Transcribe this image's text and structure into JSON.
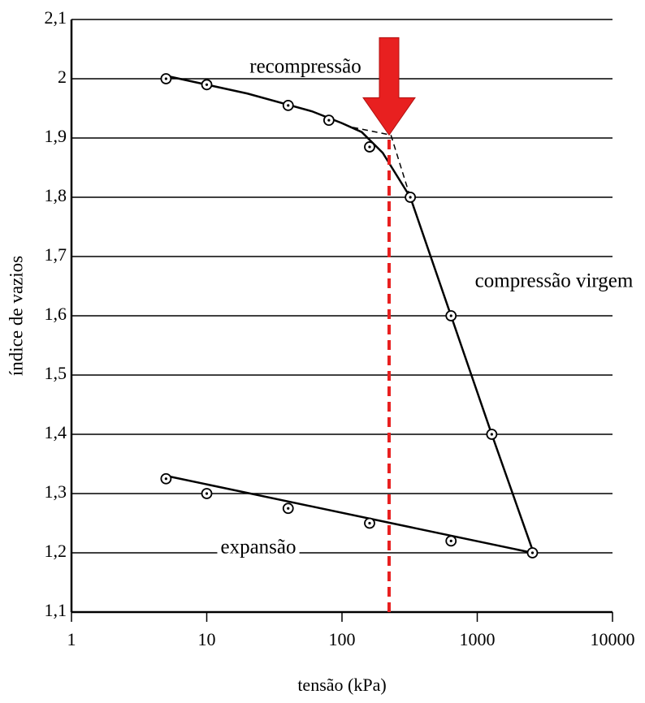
{
  "chart_data": {
    "type": "scatter",
    "xlabel": "tensão (kPa)",
    "ylabel": "índice de vazios",
    "xlog": true,
    "grid": true,
    "xlim": [
      1,
      10000
    ],
    "ylim": [
      1.1,
      2.1
    ],
    "xticks": [
      1,
      10,
      100,
      1000,
      10000
    ],
    "yticks": [
      {
        "value": 1.1,
        "label": "1,1"
      },
      {
        "value": 1.2,
        "label": "1,2"
      },
      {
        "value": 1.3,
        "label": "1,3"
      },
      {
        "value": 1.4,
        "label": "1,4"
      },
      {
        "value": 1.5,
        "label": "1,5"
      },
      {
        "value": 1.6,
        "label": "1,6"
      },
      {
        "value": 1.7,
        "label": "1,7"
      },
      {
        "value": 1.8,
        "label": "1,8"
      },
      {
        "value": 1.9,
        "label": "1,9"
      },
      2,
      {
        "value": 2.1,
        "label": "2,1"
      }
    ],
    "series": [
      {
        "type": "scatter",
        "color": "#000000",
        "x": [
          5,
          10,
          40,
          80,
          160,
          320,
          640,
          1280,
          2560,
          640,
          160,
          40,
          10,
          5
        ],
        "values": [
          2.0,
          1.99,
          1.955,
          1.93,
          1.885,
          1.8,
          1.6,
          1.4,
          1.2,
          1.22,
          1.25,
          1.275,
          1.3,
          1.325
        ]
      },
      {
        "type": "line",
        "color": "#000000",
        "x": [
          5,
          20,
          60,
          100,
          140,
          200,
          320,
          640,
          1280,
          2560
        ],
        "values": [
          2.005,
          1.975,
          1.945,
          1.925,
          1.91,
          1.875,
          1.8,
          1.6,
          1.4,
          1.205
        ]
      },
      {
        "type": "line",
        "color": "#000000",
        "x": [
          5,
          2560
        ],
        "values": [
          1.33,
          1.2
        ]
      },
      {
        "type": "line",
        "color": "#000000",
        "dash": true,
        "x": [
          120,
          230,
          320
        ],
        "values": [
          1.918,
          1.905,
          1.8
        ]
      },
      {
        "type": "line",
        "color": "#e82020",
        "dash": true,
        "x": [
          223,
          223
        ],
        "values": [
          1.1,
          1.905
        ]
      }
    ],
    "arrow": {
      "color": "#e82020",
      "x": 223,
      "y": 1.905
    },
    "annotations": [
      "recompressão",
      "compressão virgem",
      "expansão"
    ]
  }
}
